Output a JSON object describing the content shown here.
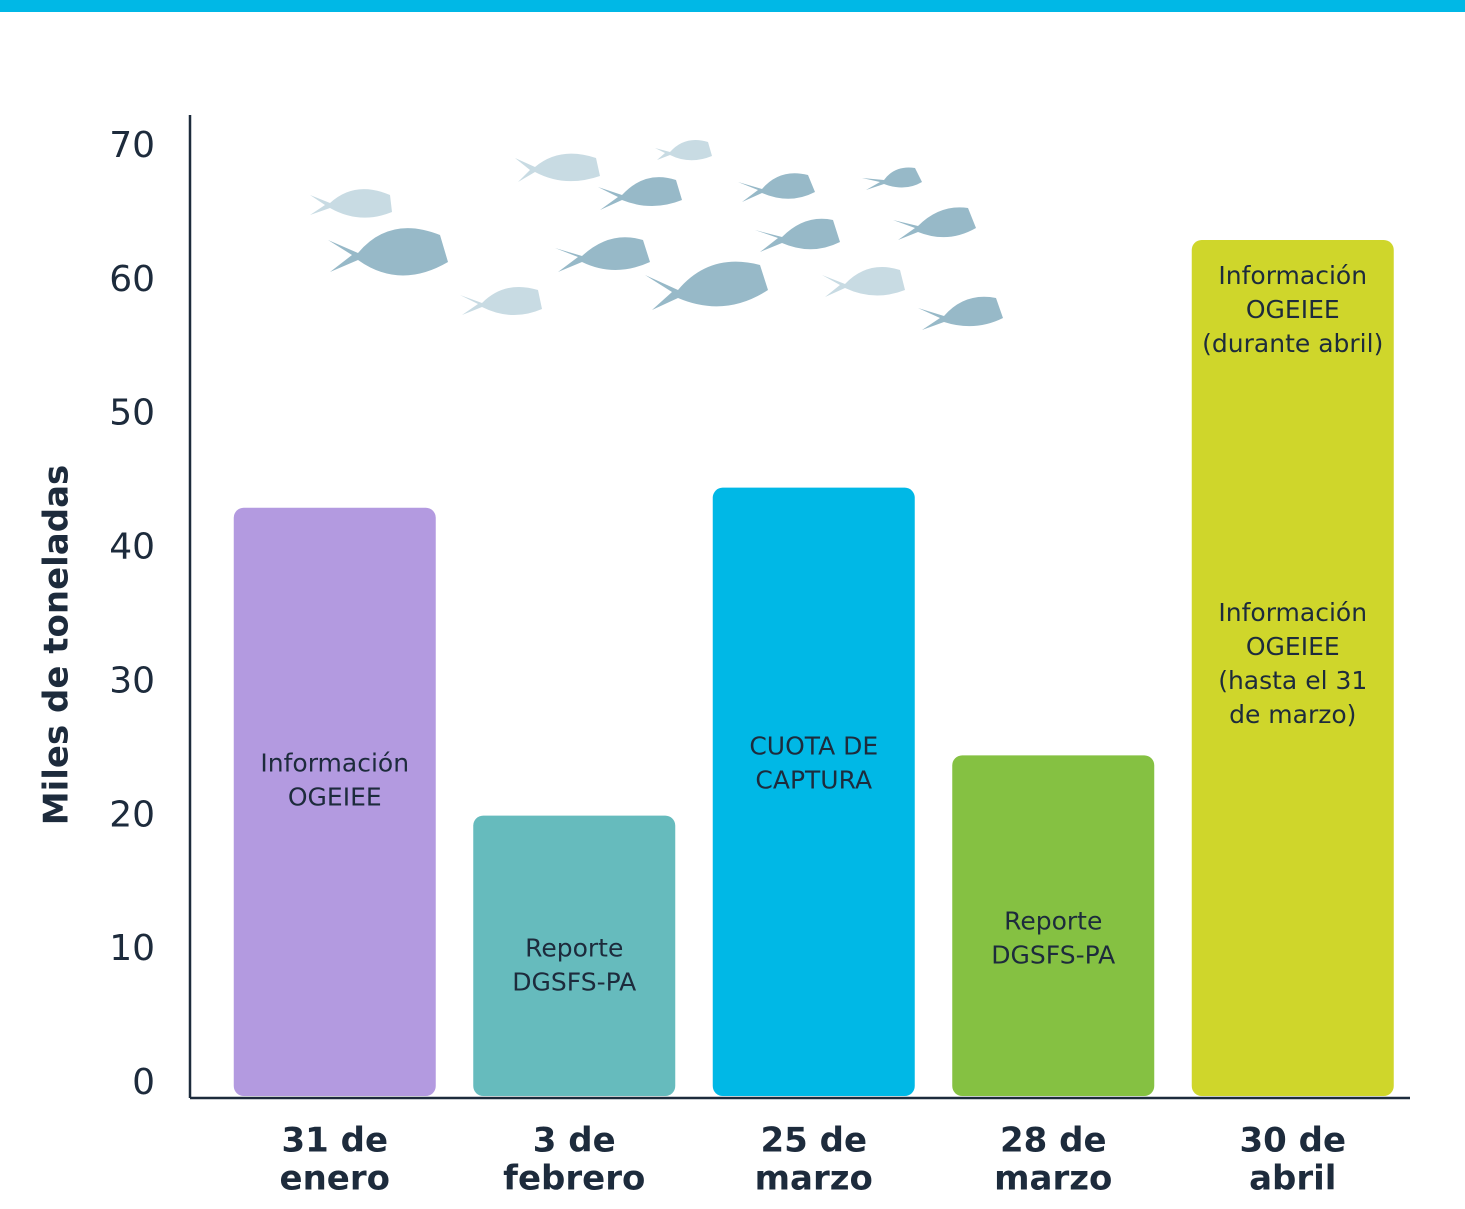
{
  "chart_data": {
    "type": "bar",
    "y_label": "Miles de toneladas",
    "categories": [
      [
        "31 de",
        "enero"
      ],
      [
        "3 de",
        "febrero"
      ],
      [
        "25 de",
        "marzo"
      ],
      [
        "28 de",
        "marzo"
      ],
      [
        "30 de",
        "abril"
      ]
    ],
    "values": [
      43.5,
      20.5,
      45,
      25,
      63.5
    ],
    "colors": [
      "#b39ae0",
      "#66bbbd",
      "#00b8e6",
      "#85c142",
      "#cfd62b"
    ],
    "bar_labels": [
      [
        [
          "Información",
          "OGEIEE"
        ]
      ],
      [
        [
          "Reporte",
          "DGSFS-PA"
        ]
      ],
      [
        [
          "CUOTA DE",
          "CAPTURA"
        ]
      ],
      [
        [
          "Reporte",
          "DGSFS-PA"
        ]
      ],
      [
        [
          "Información",
          "OGEIEE",
          "(durante abril)"
        ],
        [
          "Información",
          "OGEIEE",
          "(hasta el 31",
          "de marzo)"
        ]
      ]
    ],
    "ylim": [
      0,
      70
    ],
    "yticks": [
      0,
      10,
      20,
      30,
      40,
      50,
      60,
      70
    ]
  }
}
